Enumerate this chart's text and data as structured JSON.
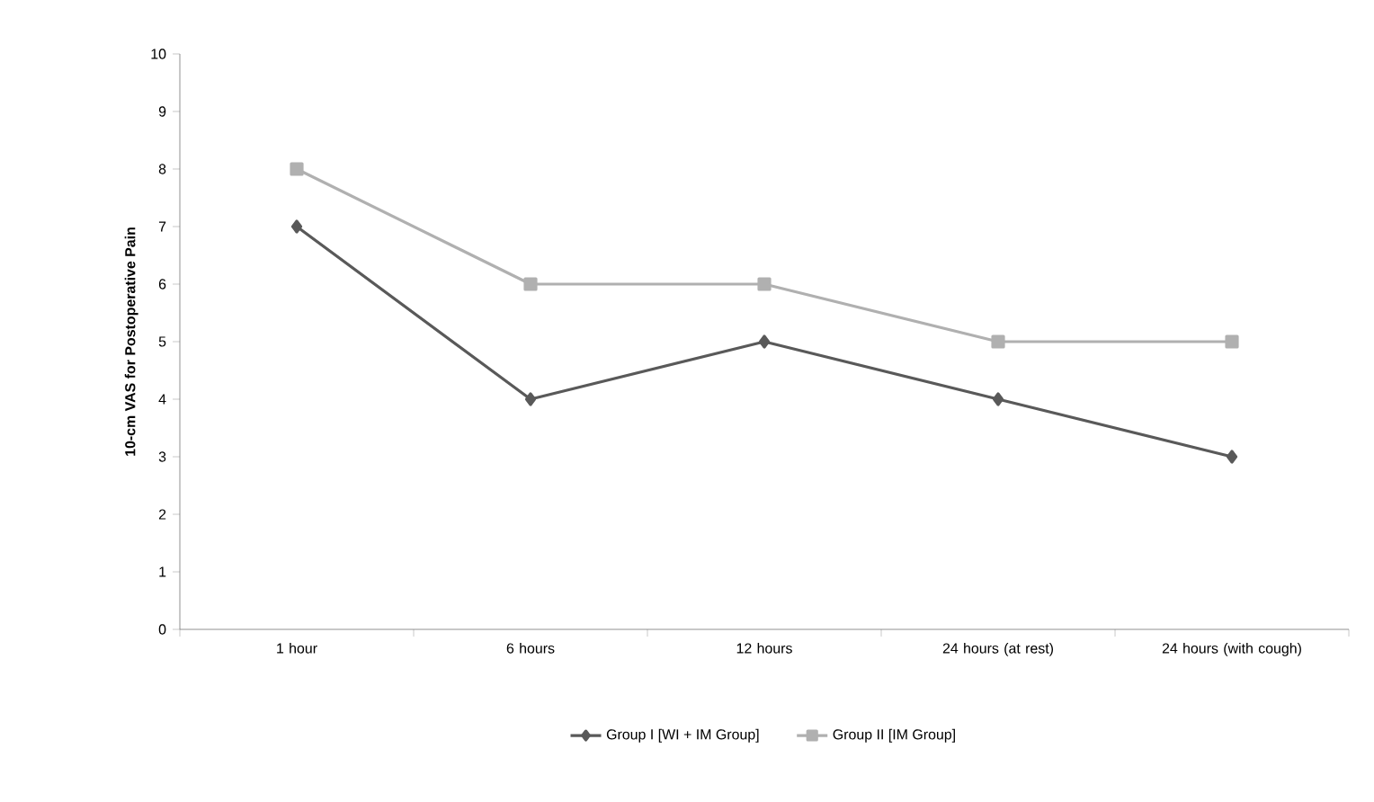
{
  "chart_data": {
    "type": "line",
    "ylabel": "10-cm VAS for Postoperative Pain",
    "categories": [
      "1 hour",
      "6 hours",
      "12 hours",
      "24 hours (at rest)",
      "24 hours (with cough)"
    ],
    "series": [
      {
        "name": "Group I [WI + IM Group]",
        "color": "#595959",
        "marker": "diamond",
        "values": [
          7,
          4,
          5,
          4,
          3
        ]
      },
      {
        "name": "Group II [IM Group]",
        "color": "#b0b0b0",
        "marker": "square",
        "values": [
          8,
          6,
          6,
          5,
          5
        ]
      }
    ],
    "ylim": [
      0,
      10
    ],
    "yticks": [
      0,
      1,
      2,
      3,
      4,
      5,
      6,
      7,
      8,
      9,
      10
    ],
    "grid": false,
    "legend": "bottom",
    "line_style": "solid"
  }
}
